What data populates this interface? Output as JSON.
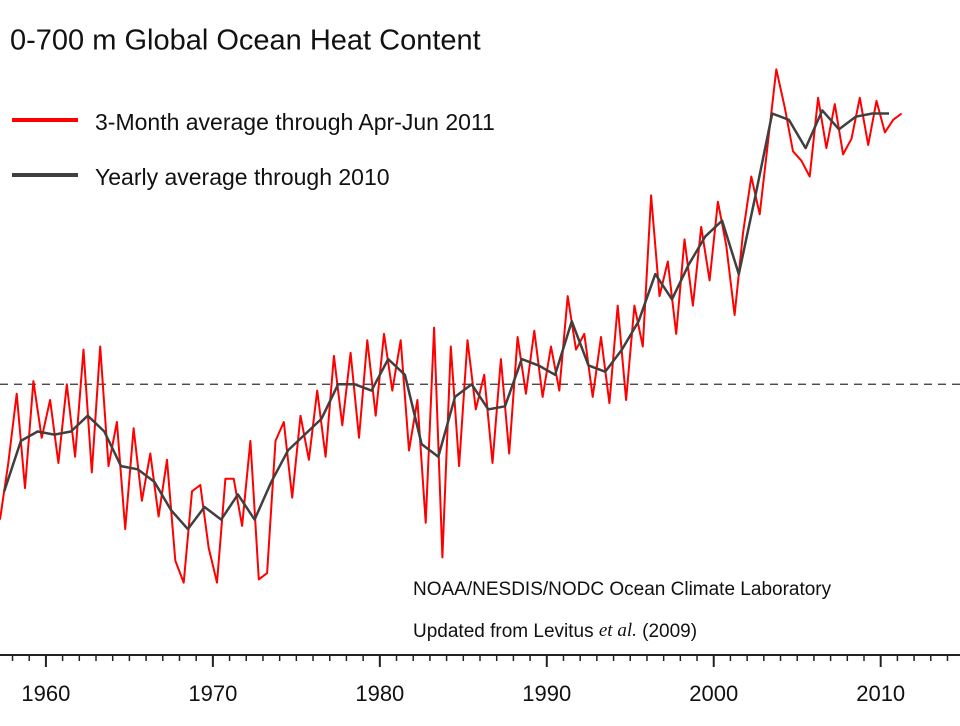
{
  "chart_data": {
    "type": "line",
    "title": "0-700 m Global Ocean Heat Content",
    "credit_1": "NOAA/NESDIS/NODC Ocean Climate Laboratory",
    "credit_2": {
      "before": "Updated from Levitus",
      "italic": "et al.",
      "after": "(2009)"
    },
    "xlim": [
      1957.25,
      2014.75
    ],
    "ylim": [
      -8.6,
      10.3
    ],
    "xticks": [
      1960,
      1970,
      1980,
      1990,
      2000,
      2010
    ],
    "xminor_ticks": [
      1958,
      1959,
      1960,
      1961,
      1962,
      1963,
      1964,
      1965,
      1966,
      1967,
      1968,
      1969,
      1970,
      1971,
      1972,
      1973,
      1974,
      1975,
      1976,
      1977,
      1978,
      1979,
      1980,
      1981,
      1982,
      1983,
      1984,
      1985,
      1986,
      1987,
      1988,
      1989,
      1990,
      1991,
      1992,
      1993,
      1994,
      1995,
      1996,
      1997,
      1998,
      1999,
      2000,
      2001,
      2002,
      2003,
      2004,
      2005,
      2006,
      2007,
      2008,
      2009,
      2010,
      2011,
      2012,
      2013,
      2014
    ],
    "reference_line": 0,
    "series": [
      {
        "name": "3-Month average through Apr-Jun 2011",
        "color": "#ff0000",
        "x": [
          1957.25,
          1957.75,
          1958.25,
          1958.75,
          1959.25,
          1959.75,
          1960.25,
          1960.75,
          1961.25,
          1961.75,
          1962.25,
          1962.75,
          1963.25,
          1963.75,
          1964.25,
          1964.75,
          1965.25,
          1965.75,
          1966.25,
          1966.75,
          1967.25,
          1967.75,
          1968.25,
          1968.75,
          1969.25,
          1969.75,
          1970.25,
          1970.75,
          1971.25,
          1971.75,
          1972.25,
          1972.75,
          1973.25,
          1973.75,
          1974.25,
          1974.75,
          1975.25,
          1975.75,
          1976.25,
          1976.75,
          1977.25,
          1977.75,
          1978.25,
          1978.75,
          1979.25,
          1979.75,
          1980.25,
          1980.75,
          1981.25,
          1981.75,
          1982.25,
          1982.75,
          1983.25,
          1983.75,
          1984.25,
          1984.75,
          1985.25,
          1985.75,
          1986.25,
          1986.75,
          1987.25,
          1987.75,
          1988.25,
          1988.75,
          1989.25,
          1989.75,
          1990.25,
          1990.75,
          1991.25,
          1991.75,
          1992.25,
          1992.75,
          1993.25,
          1993.75,
          1994.25,
          1994.75,
          1995.25,
          1995.75,
          1996.25,
          1996.75,
          1997.25,
          1997.75,
          1998.25,
          1998.75,
          1999.25,
          1999.75,
          2000.25,
          2000.75,
          2001.25,
          2001.75,
          2002.25,
          2002.75,
          2003.25,
          2003.75,
          2004.25,
          2004.75,
          2005.25,
          2005.75,
          2006.25,
          2006.75,
          2007.25,
          2007.75,
          2008.25,
          2008.75,
          2009.25,
          2009.75,
          2010.25,
          2010.75,
          2011.25
        ],
        "values": [
          -4.3,
          -2.5,
          -0.3,
          -3.3,
          0.1,
          -1.7,
          -0.5,
          -2.5,
          0.0,
          -2.3,
          1.1,
          -2.8,
          1.2,
          -2.6,
          -1.2,
          -4.6,
          -1.4,
          -3.7,
          -2.2,
          -4.2,
          -2.4,
          -5.6,
          -6.3,
          -3.4,
          -3.2,
          -5.2,
          -6.3,
          -3.0,
          -3.0,
          -4.5,
          -1.8,
          -6.2,
          -6.0,
          -1.8,
          -1.2,
          -3.6,
          -1.0,
          -2.4,
          -0.2,
          -2.3,
          0.9,
          -1.3,
          1.0,
          -1.7,
          1.4,
          -1.0,
          1.6,
          -0.2,
          1.4,
          -2.1,
          -0.5,
          -4.4,
          1.8,
          -5.5,
          1.2,
          -2.6,
          1.4,
          -0.8,
          0.3,
          -2.5,
          0.8,
          -2.2,
          1.5,
          -0.3,
          1.7,
          -0.4,
          1.2,
          -0.2,
          2.8,
          1.1,
          1.6,
          -0.4,
          1.5,
          -0.6,
          2.5,
          -0.5,
          2.5,
          1.2,
          6.0,
          2.8,
          3.9,
          1.6,
          4.6,
          2.5,
          5.0,
          3.3,
          5.8,
          4.4,
          2.2,
          4.8,
          6.6,
          5.4,
          7.7,
          10.0,
          8.8,
          7.4,
          7.1,
          6.6,
          9.1,
          7.5,
          8.9,
          7.3,
          7.8,
          9.1,
          7.6,
          9.0,
          8.0,
          8.4,
          8.6
        ]
      },
      {
        "name": "Yearly average through 2010",
        "color": "#404040",
        "x": [
          1957.5,
          1958.5,
          1959.5,
          1960.5,
          1961.5,
          1962.5,
          1963.5,
          1964.5,
          1965.5,
          1966.5,
          1967.5,
          1968.5,
          1969.5,
          1970.5,
          1971.5,
          1972.5,
          1973.5,
          1974.5,
          1975.5,
          1976.5,
          1977.5,
          1978.5,
          1979.5,
          1980.5,
          1981.5,
          1982.5,
          1983.5,
          1984.5,
          1985.5,
          1986.5,
          1987.5,
          1988.5,
          1989.5,
          1990.5,
          1991.5,
          1992.5,
          1993.5,
          1994.5,
          1995.5,
          1996.5,
          1997.5,
          1998.5,
          1999.5,
          2000.5,
          2001.5,
          2002.5,
          2003.5,
          2004.5,
          2005.5,
          2006.5,
          2007.5,
          2008.5,
          2009.5,
          2010.5
        ],
        "values": [
          -3.4,
          -1.8,
          -1.5,
          -1.6,
          -1.5,
          -1.0,
          -1.5,
          -2.6,
          -2.7,
          -3.1,
          -4.0,
          -4.6,
          -3.9,
          -4.3,
          -3.5,
          -4.3,
          -3.1,
          -2.1,
          -1.6,
          -1.1,
          0,
          0,
          -0.2,
          0.8,
          0.3,
          -1.9,
          -2.3,
          -0.4,
          0,
          -0.8,
          -0.7,
          0.8,
          0.6,
          0.3,
          2.0,
          0.6,
          0.4,
          1.1,
          2.0,
          3.5,
          2.7,
          3.8,
          4.7,
          5.2,
          3.5,
          6.0,
          8.6,
          8.4,
          7.5,
          8.7,
          8.1,
          8.5,
          8.6,
          8.6
        ]
      }
    ]
  }
}
